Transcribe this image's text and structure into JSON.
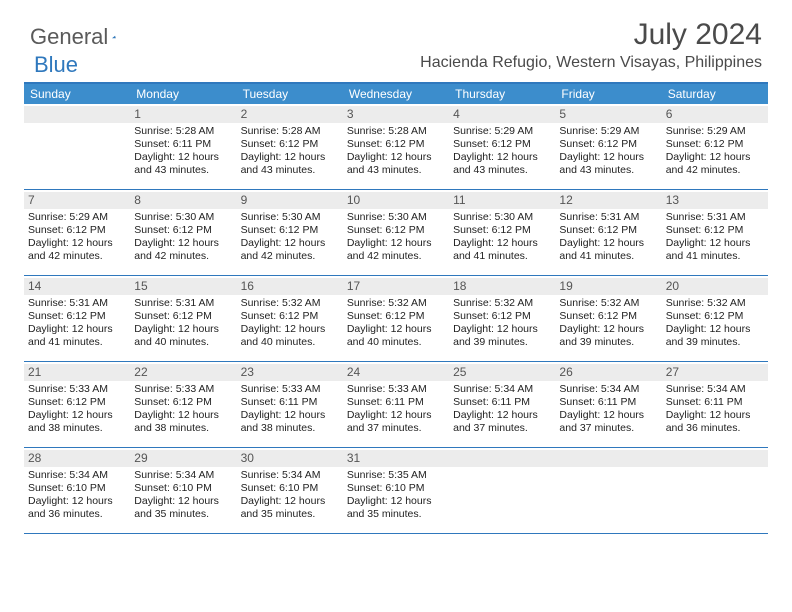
{
  "brand": {
    "part1": "General",
    "part2": "Blue"
  },
  "title": "July 2024",
  "location": "Hacienda Refugio, Western Visayas, Philippines",
  "colors": {
    "header_bar": "#3c8dcc",
    "rule": "#2f78bd",
    "day_num_bg": "#ececec",
    "text": "#222222",
    "title_text": "#4a4a4a"
  },
  "fonts": {
    "title_size": 30,
    "location_size": 16,
    "head_size": 12,
    "body_size": 10.5,
    "daynum_size": 12
  },
  "day_headers": [
    "Sunday",
    "Monday",
    "Tuesday",
    "Wednesday",
    "Thursday",
    "Friday",
    "Saturday"
  ],
  "weeks": [
    [
      {
        "n": "",
        "lines": []
      },
      {
        "n": "1",
        "lines": [
          "Sunrise: 5:28 AM",
          "Sunset: 6:11 PM",
          "Daylight: 12 hours",
          "and 43 minutes."
        ]
      },
      {
        "n": "2",
        "lines": [
          "Sunrise: 5:28 AM",
          "Sunset: 6:12 PM",
          "Daylight: 12 hours",
          "and 43 minutes."
        ]
      },
      {
        "n": "3",
        "lines": [
          "Sunrise: 5:28 AM",
          "Sunset: 6:12 PM",
          "Daylight: 12 hours",
          "and 43 minutes."
        ]
      },
      {
        "n": "4",
        "lines": [
          "Sunrise: 5:29 AM",
          "Sunset: 6:12 PM",
          "Daylight: 12 hours",
          "and 43 minutes."
        ]
      },
      {
        "n": "5",
        "lines": [
          "Sunrise: 5:29 AM",
          "Sunset: 6:12 PM",
          "Daylight: 12 hours",
          "and 43 minutes."
        ]
      },
      {
        "n": "6",
        "lines": [
          "Sunrise: 5:29 AM",
          "Sunset: 6:12 PM",
          "Daylight: 12 hours",
          "and 42 minutes."
        ]
      }
    ],
    [
      {
        "n": "7",
        "lines": [
          "Sunrise: 5:29 AM",
          "Sunset: 6:12 PM",
          "Daylight: 12 hours",
          "and 42 minutes."
        ]
      },
      {
        "n": "8",
        "lines": [
          "Sunrise: 5:30 AM",
          "Sunset: 6:12 PM",
          "Daylight: 12 hours",
          "and 42 minutes."
        ]
      },
      {
        "n": "9",
        "lines": [
          "Sunrise: 5:30 AM",
          "Sunset: 6:12 PM",
          "Daylight: 12 hours",
          "and 42 minutes."
        ]
      },
      {
        "n": "10",
        "lines": [
          "Sunrise: 5:30 AM",
          "Sunset: 6:12 PM",
          "Daylight: 12 hours",
          "and 42 minutes."
        ]
      },
      {
        "n": "11",
        "lines": [
          "Sunrise: 5:30 AM",
          "Sunset: 6:12 PM",
          "Daylight: 12 hours",
          "and 41 minutes."
        ]
      },
      {
        "n": "12",
        "lines": [
          "Sunrise: 5:31 AM",
          "Sunset: 6:12 PM",
          "Daylight: 12 hours",
          "and 41 minutes."
        ]
      },
      {
        "n": "13",
        "lines": [
          "Sunrise: 5:31 AM",
          "Sunset: 6:12 PM",
          "Daylight: 12 hours",
          "and 41 minutes."
        ]
      }
    ],
    [
      {
        "n": "14",
        "lines": [
          "Sunrise: 5:31 AM",
          "Sunset: 6:12 PM",
          "Daylight: 12 hours",
          "and 41 minutes."
        ]
      },
      {
        "n": "15",
        "lines": [
          "Sunrise: 5:31 AM",
          "Sunset: 6:12 PM",
          "Daylight: 12 hours",
          "and 40 minutes."
        ]
      },
      {
        "n": "16",
        "lines": [
          "Sunrise: 5:32 AM",
          "Sunset: 6:12 PM",
          "Daylight: 12 hours",
          "and 40 minutes."
        ]
      },
      {
        "n": "17",
        "lines": [
          "Sunrise: 5:32 AM",
          "Sunset: 6:12 PM",
          "Daylight: 12 hours",
          "and 40 minutes."
        ]
      },
      {
        "n": "18",
        "lines": [
          "Sunrise: 5:32 AM",
          "Sunset: 6:12 PM",
          "Daylight: 12 hours",
          "and 39 minutes."
        ]
      },
      {
        "n": "19",
        "lines": [
          "Sunrise: 5:32 AM",
          "Sunset: 6:12 PM",
          "Daylight: 12 hours",
          "and 39 minutes."
        ]
      },
      {
        "n": "20",
        "lines": [
          "Sunrise: 5:32 AM",
          "Sunset: 6:12 PM",
          "Daylight: 12 hours",
          "and 39 minutes."
        ]
      }
    ],
    [
      {
        "n": "21",
        "lines": [
          "Sunrise: 5:33 AM",
          "Sunset: 6:12 PM",
          "Daylight: 12 hours",
          "and 38 minutes."
        ]
      },
      {
        "n": "22",
        "lines": [
          "Sunrise: 5:33 AM",
          "Sunset: 6:12 PM",
          "Daylight: 12 hours",
          "and 38 minutes."
        ]
      },
      {
        "n": "23",
        "lines": [
          "Sunrise: 5:33 AM",
          "Sunset: 6:11 PM",
          "Daylight: 12 hours",
          "and 38 minutes."
        ]
      },
      {
        "n": "24",
        "lines": [
          "Sunrise: 5:33 AM",
          "Sunset: 6:11 PM",
          "Daylight: 12 hours",
          "and 37 minutes."
        ]
      },
      {
        "n": "25",
        "lines": [
          "Sunrise: 5:34 AM",
          "Sunset: 6:11 PM",
          "Daylight: 12 hours",
          "and 37 minutes."
        ]
      },
      {
        "n": "26",
        "lines": [
          "Sunrise: 5:34 AM",
          "Sunset: 6:11 PM",
          "Daylight: 12 hours",
          "and 37 minutes."
        ]
      },
      {
        "n": "27",
        "lines": [
          "Sunrise: 5:34 AM",
          "Sunset: 6:11 PM",
          "Daylight: 12 hours",
          "and 36 minutes."
        ]
      }
    ],
    [
      {
        "n": "28",
        "lines": [
          "Sunrise: 5:34 AM",
          "Sunset: 6:10 PM",
          "Daylight: 12 hours",
          "and 36 minutes."
        ]
      },
      {
        "n": "29",
        "lines": [
          "Sunrise: 5:34 AM",
          "Sunset: 6:10 PM",
          "Daylight: 12 hours",
          "and 35 minutes."
        ]
      },
      {
        "n": "30",
        "lines": [
          "Sunrise: 5:34 AM",
          "Sunset: 6:10 PM",
          "Daylight: 12 hours",
          "and 35 minutes."
        ]
      },
      {
        "n": "31",
        "lines": [
          "Sunrise: 5:35 AM",
          "Sunset: 6:10 PM",
          "Daylight: 12 hours",
          "and 35 minutes."
        ]
      },
      {
        "n": "",
        "lines": []
      },
      {
        "n": "",
        "lines": []
      },
      {
        "n": "",
        "lines": []
      }
    ]
  ]
}
